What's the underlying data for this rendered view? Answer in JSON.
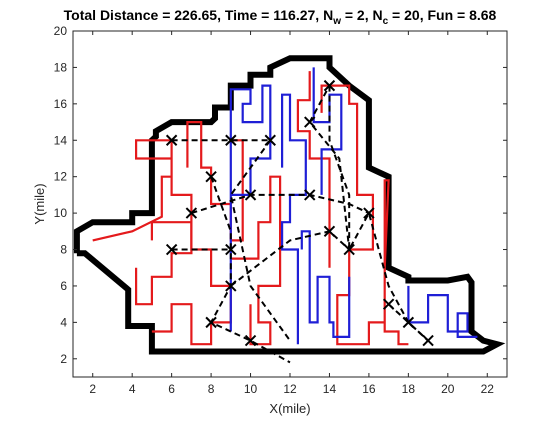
{
  "chart_data": {
    "type": "line",
    "title": "Total Distance = 226.65, Time = 116.27, N",
    "title_sub_w": "w",
    "title_mid": " = 2, N",
    "title_sub_c": "c",
    "title_end": " = 20, Fun = 8.68",
    "xlabel": "X(mile)",
    "ylabel": "Y(mile)",
    "xlim": [
      1,
      23
    ],
    "ylim": [
      1,
      20
    ],
    "xticks": [
      2,
      4,
      6,
      8,
      10,
      12,
      14,
      16,
      18,
      20,
      22
    ],
    "yticks": [
      2,
      4,
      6,
      8,
      10,
      12,
      14,
      16,
      18,
      20
    ],
    "grid": false,
    "colors": {
      "boundary": "#000000",
      "red_path": "#e41a1c",
      "blue_path": "#1f1fd6",
      "dashed": "#000000",
      "marker": "#000000",
      "axes": "#262626"
    },
    "series": [
      {
        "style": "boundary",
        "x": [
          1.2,
          1.2,
          2.0,
          2.0,
          4.0,
          4.0,
          5.0,
          5.0,
          5.2,
          5.2,
          6.0,
          8.0,
          8.2,
          8.2,
          9.0,
          9.0,
          10.0,
          10.0,
          11.0,
          11.0,
          12.0,
          12.0,
          14.0,
          14.0,
          15.0,
          16.0,
          16.0,
          17.0,
          17.0,
          18.0,
          18.0,
          20.0,
          21.0,
          21.2,
          21.2,
          21.8,
          22.5,
          21.8,
          5.0,
          5.0,
          3.8,
          3.8,
          1.6,
          1.2
        ],
        "y": [
          7.8,
          9.0,
          9.5,
          9.5,
          9.5,
          10.0,
          10.0,
          14.0,
          14.2,
          14.5,
          15.0,
          15.0,
          15.2,
          15.8,
          15.8,
          17.0,
          17.0,
          17.6,
          17.6,
          18.0,
          18.5,
          18.5,
          18.5,
          18.0,
          17.0,
          16.2,
          12.5,
          12.0,
          7.0,
          6.5,
          6.3,
          6.3,
          6.5,
          6.2,
          3.5,
          3.0,
          2.8,
          2.4,
          2.4,
          3.8,
          3.8,
          5.8,
          7.8,
          7.8
        ]
      },
      {
        "style": "red",
        "x": [
          2.0,
          4.0,
          5.5,
          5.5,
          6.0,
          6.0,
          4.2,
          4.2,
          6.0,
          6.0,
          7.0,
          7.0,
          8.0,
          8.0,
          9.0,
          9.0,
          8.0,
          8.0,
          7.0,
          7.0,
          6.0,
          6.0,
          5.0
        ],
        "y": [
          8.5,
          9.0,
          9.8,
          12.0,
          12.0,
          14.0,
          14.0,
          13.0,
          13.0,
          11.0,
          11.0,
          8.0,
          8.0,
          6.0,
          6.0,
          4.0,
          4.0,
          2.8,
          2.8,
          5.0,
          5.0,
          3.5,
          3.5
        ]
      },
      {
        "style": "red",
        "x": [
          4.2,
          4.2,
          5.0,
          5.0,
          6.0,
          6.0,
          7.0,
          7.0,
          5.0,
          5.0
        ],
        "y": [
          7.0,
          5.0,
          5.0,
          6.5,
          6.5,
          7.8,
          7.8,
          9.5,
          9.5,
          8.5
        ]
      },
      {
        "style": "red",
        "x": [
          6.8,
          6.8,
          7.5,
          7.5,
          8.0,
          8.0,
          9.0,
          9.0,
          9.6,
          9.6,
          9.0
        ],
        "y": [
          12.5,
          15.0,
          15.0,
          12.5,
          12.5,
          10.5,
          10.5,
          8.5,
          8.5,
          14.0,
          14.0
        ]
      },
      {
        "style": "red",
        "x": [
          9.0,
          10.4,
          10.4,
          11.0,
          11.0,
          11.5,
          11.5,
          10.4,
          10.4,
          11.0,
          11.0,
          10.0,
          10.0
        ],
        "y": [
          7.5,
          7.5,
          9.5,
          9.5,
          12.0,
          12.0,
          6.0,
          6.0,
          4.0,
          4.0,
          2.8,
          2.8,
          5.0
        ]
      },
      {
        "style": "red",
        "x": [
          13.6,
          13.6,
          15.0,
          15.0,
          15.4,
          15.4,
          16.2,
          16.2,
          15.0,
          15.0,
          14.4,
          14.4,
          16.0,
          16.0,
          16.8,
          16.8,
          17.0,
          16.8,
          16.8,
          17.5,
          17.5,
          18.0
        ],
        "y": [
          15.5,
          17.0,
          17.0,
          16.0,
          16.0,
          11.0,
          11.0,
          8.0,
          8.0,
          5.5,
          5.5,
          2.8,
          2.8,
          4.0,
          4.0,
          7.0,
          11.8,
          11.8,
          3.5,
          3.5,
          2.8,
          2.8
        ]
      },
      {
        "style": "red",
        "x": [
          13.0,
          13.0,
          12.4,
          12.4,
          13.0,
          13.0,
          14.0,
          14.0
        ],
        "y": [
          17.8,
          16.2,
          16.2,
          14.5,
          14.5,
          13.0,
          13.0,
          7.0
        ]
      },
      {
        "style": "blue",
        "x": [
          9.0,
          9.0,
          10.0,
          10.0,
          9.6,
          9.6,
          10.6,
          10.6,
          11.0,
          11.0,
          10.0,
          10.0,
          9.0
        ],
        "y": [
          3.5,
          16.8,
          16.8,
          16.0,
          16.0,
          15.0,
          15.0,
          17.0,
          17.0,
          13.0,
          13.0,
          11.0,
          11.0
        ]
      },
      {
        "style": "blue",
        "x": [
          11.6,
          11.6,
          12.0,
          12.0,
          12.8,
          12.8,
          12.0,
          12.0,
          11.6,
          11.6,
          12.4,
          12.4
        ],
        "y": [
          12.5,
          16.5,
          16.5,
          14.0,
          14.0,
          11.0,
          11.0,
          9.5,
          9.5,
          8.0,
          8.0,
          2.8
        ]
      },
      {
        "style": "blue",
        "x": [
          12.6,
          12.6,
          13.0,
          13.0,
          13.4,
          13.4,
          14.0,
          14.0,
          14.2,
          14.2,
          15.0,
          15.0
        ],
        "y": [
          8.0,
          9.0,
          9.0,
          4.0,
          4.0,
          6.5,
          6.5,
          4.0,
          4.0,
          3.2,
          3.2,
          6.5
        ]
      },
      {
        "style": "blue",
        "x": [
          13.2,
          13.2,
          14.0,
          14.0,
          14.6,
          14.6,
          13.6,
          13.6
        ],
        "y": [
          18.0,
          15.0,
          15.0,
          16.5,
          16.5,
          13.5,
          13.5,
          11.0
        ]
      },
      {
        "style": "blue",
        "x": [
          18.0,
          18.0,
          19.0,
          19.0,
          20.0,
          20.0,
          21.0,
          21.0,
          20.5,
          20.5,
          21.5
        ],
        "y": [
          6.0,
          4.0,
          4.0,
          5.5,
          5.5,
          3.5,
          3.5,
          4.5,
          4.5,
          3.2,
          3.2
        ]
      },
      {
        "style": "dashed",
        "x": [
          6.0,
          9.0,
          11.0
        ],
        "y": [
          14.0,
          14.0,
          14.0
        ]
      },
      {
        "style": "dashed",
        "x": [
          6.0,
          8.0,
          9.0
        ],
        "y": [
          8.0,
          8.0,
          8.0
        ]
      },
      {
        "style": "dashed",
        "x": [
          7.0,
          10.0,
          13.0,
          15.0,
          16.0
        ],
        "y": [
          10.0,
          11.0,
          11.0,
          10.5,
          10.0
        ]
      },
      {
        "style": "dashed",
        "x": [
          8.0,
          9.0,
          9.0,
          8.0,
          10.0,
          12.0
        ],
        "y": [
          12.0,
          9.0,
          6.0,
          4.0,
          3.0,
          1.8
        ]
      },
      {
        "style": "dashed",
        "x": [
          9.0,
          12.0,
          14.0,
          15.0,
          14.5,
          13.0,
          14.0
        ],
        "y": [
          6.0,
          8.5,
          9.0,
          8.0,
          13.0,
          15.0,
          17.0
        ]
      },
      {
        "style": "dashed",
        "x": [
          14.0,
          14.0,
          15.0,
          15.0,
          16.0,
          17.0,
          18.0,
          19.0
        ],
        "y": [
          17.0,
          14.0,
          11.0,
          8.0,
          10.0,
          6.0,
          4.0,
          3.0
        ]
      },
      {
        "style": "dashed",
        "x": [
          11.0,
          9.0,
          10.0,
          12.0
        ],
        "y": [
          14.0,
          11.0,
          6.0,
          3.0
        ]
      },
      {
        "style": "dashed",
        "x": [
          17.0,
          18.0,
          19.0
        ],
        "y": [
          5.0,
          4.0,
          3.0
        ]
      }
    ],
    "markers": {
      "x": [
        6,
        9,
        11,
        8,
        7,
        10,
        6,
        9,
        13,
        14,
        13,
        14,
        15,
        16,
        9,
        8,
        10,
        17,
        18,
        19
      ],
      "y": [
        14,
        14,
        14,
        12,
        10,
        11,
        8,
        8,
        15,
        17,
        11,
        9,
        8,
        10,
        6,
        4,
        3,
        5,
        4,
        3
      ]
    }
  }
}
